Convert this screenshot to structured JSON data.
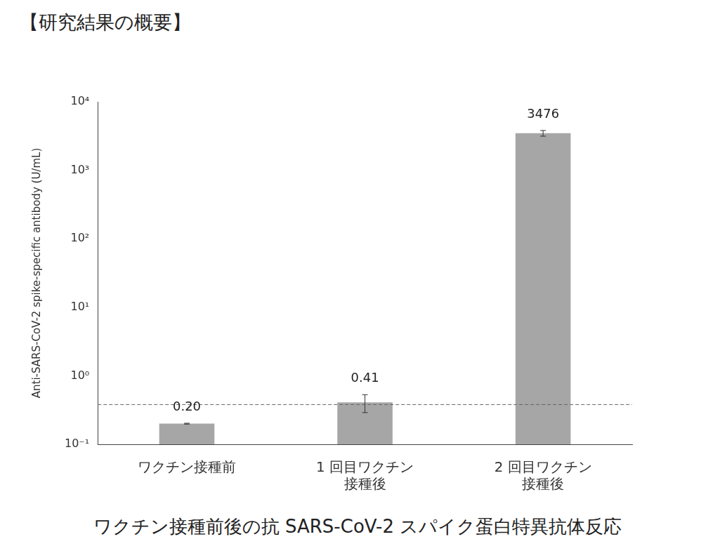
{
  "chart_data": {
    "type": "bar",
    "header": "【研究結果の概要】",
    "title": "ワクチン接種前後の抗 SARS-CoV-2 スパイク蛋白特異抗体反応",
    "y_label": "Anti-SARS-CoV-2 spike-specific antibody (U/mL)",
    "categories": [
      "ワクチン接種前",
      [
        "1 回目ワクチン",
        "接種後"
      ],
      [
        "2 回目ワクチン",
        "接種後"
      ]
    ],
    "values": [
      0.2,
      0.41,
      3476
    ],
    "value_labels": [
      "0.20",
      "0.41",
      "3476"
    ],
    "error": [
      0.003,
      0.12,
      330
    ],
    "reference_line": 0.38,
    "color": "#a6a6a6",
    "log": "y",
    "ylim": [
      0.1,
      10000
    ],
    "yticks": [
      {
        "value": 0.1,
        "label": "10⁻¹"
      },
      {
        "value": 1,
        "label": "10⁰"
      },
      {
        "value": 10,
        "label": "10¹"
      },
      {
        "value": 100,
        "label": "10²"
      },
      {
        "value": 1000,
        "label": "10³"
      },
      {
        "value": 10000,
        "label": "10⁴"
      }
    ],
    "grid": false,
    "data_labels": true
  }
}
